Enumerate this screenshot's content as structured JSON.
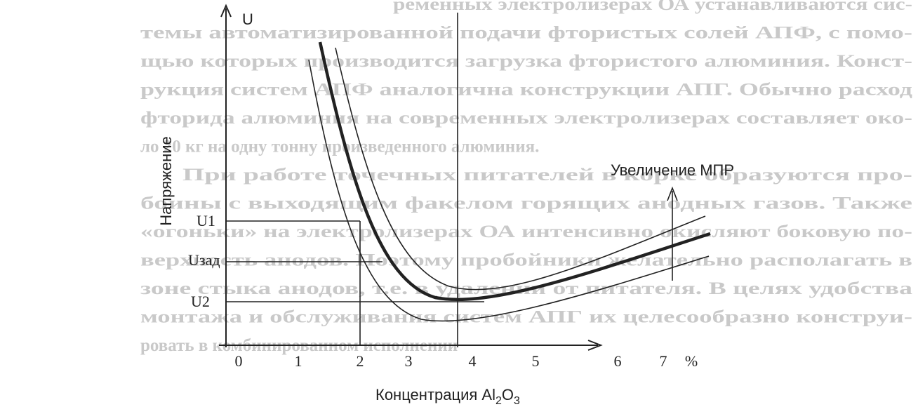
{
  "background_text": [
    "ременных электролизерах ОА устанавливаются сис-",
    "темы автоматизированной подачи фтористых солей АПФ, с помо-",
    "щью которых производится загрузка фтористого алюминия. Конст-",
    "рукция систем АПФ аналогична конструкции АПГ. Обычно расход",
    "фторида алюминия на современных электролизерах составляет око-",
    "ло 20 кг на одну тонну произведенного алюминия.",
    "При работе точечных питателей в корке образуются про-",
    "боины с выходящим факелом горящих анодных газов. Также",
    "«огоньки» на электролизерах ОА интенсивно окисляют боковую по-",
    "верхность анодов. Поэтому пробойники желательно располагать в",
    "зоне стыка анодов, т.е. в удалении от питателя. В целях удобства",
    "монтажа и обслуживания систем АПГ их целесообразно конструи-",
    "ровать в комбинированном исполнении"
  ],
  "diagram": {
    "y_axis_symbol": "U",
    "y_axis_label": "Напряжение",
    "x_axis_label": {
      "main": "Концентрация Al",
      "sub1": "2",
      "mid": "O",
      "sub2": "3"
    },
    "x_tick_labels": [
      "0",
      "1",
      "2",
      "3",
      "4",
      "5",
      "6",
      "7"
    ],
    "x_unit": "%",
    "y_levels": [
      "U1",
      "Uзад",
      "U2"
    ],
    "annotation": "Увеличение МПР"
  }
}
